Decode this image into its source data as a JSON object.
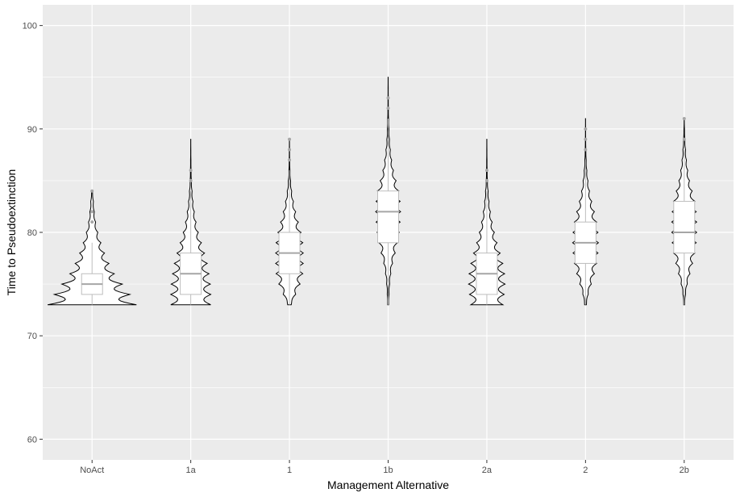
{
  "chart_data": {
    "type": "violin",
    "title": "",
    "xlabel": "Management Alternative",
    "ylabel": "Time to Pseudoextinction",
    "ylim": [
      58,
      102
    ],
    "yticks": [
      60,
      70,
      80,
      90,
      100
    ],
    "grid": true,
    "legend": "none",
    "colors": {
      "panel": "#ebebeb",
      "grid_major": "#ffffff",
      "violin_stroke": "#000000",
      "violin_fill": "#ffffff",
      "box_stroke": "#bdbdbd",
      "median": "#a6a6a6",
      "outlier": "#a6a6a6"
    },
    "categories": [
      "NoAct",
      "1a",
      "1",
      "1b",
      "2a",
      "2",
      "2b"
    ],
    "groups": [
      {
        "name": "NoAct",
        "min": 73,
        "max": 84,
        "density": [
          [
            73,
            1.0
          ],
          [
            74,
            0.85
          ],
          [
            75,
            0.68
          ],
          [
            76,
            0.5
          ],
          [
            77,
            0.38
          ],
          [
            78,
            0.28
          ],
          [
            79,
            0.2
          ],
          [
            80,
            0.13
          ],
          [
            81,
            0.08
          ],
          [
            82,
            0.05
          ],
          [
            83,
            0.03
          ],
          [
            84,
            0.01
          ]
        ],
        "box": {
          "q1": 74,
          "median": 75,
          "q3": 76,
          "whisker_low": 73,
          "whisker_high": 79
        },
        "outliers": [
          81,
          82,
          84
        ]
      },
      {
        "name": "1a",
        "min": 73,
        "max": 89,
        "density": [
          [
            73,
            0.45
          ],
          [
            74,
            0.45
          ],
          [
            75,
            0.44
          ],
          [
            76,
            0.41
          ],
          [
            77,
            0.37
          ],
          [
            78,
            0.31
          ],
          [
            79,
            0.24
          ],
          [
            80,
            0.17
          ],
          [
            81,
            0.12
          ],
          [
            82,
            0.08
          ],
          [
            83,
            0.05
          ],
          [
            84,
            0.03
          ],
          [
            85,
            0.015
          ],
          [
            86,
            0.008
          ],
          [
            87,
            0.004
          ],
          [
            88,
            0.002
          ],
          [
            89,
            0.001
          ]
        ],
        "box": {
          "q1": 74,
          "median": 76,
          "q3": 78,
          "whisker_low": 73,
          "whisker_high": 84
        },
        "outliers": [
          85,
          86
        ]
      },
      {
        "name": "1",
        "min": 73,
        "max": 89,
        "density": [
          [
            73,
            0.04
          ],
          [
            74,
            0.14
          ],
          [
            75,
            0.24
          ],
          [
            76,
            0.3
          ],
          [
            77,
            0.31
          ],
          [
            78,
            0.31
          ],
          [
            79,
            0.3
          ],
          [
            80,
            0.26
          ],
          [
            81,
            0.2
          ],
          [
            82,
            0.14
          ],
          [
            83,
            0.09
          ],
          [
            84,
            0.05
          ],
          [
            85,
            0.025
          ],
          [
            86,
            0.012
          ],
          [
            87,
            0.006
          ],
          [
            88,
            0.003
          ],
          [
            89,
            0.001
          ]
        ],
        "box": {
          "q1": 76,
          "median": 78,
          "q3": 80,
          "whisker_low": 73,
          "whisker_high": 86
        },
        "outliers": [
          87,
          88,
          89
        ]
      },
      {
        "name": "1b",
        "min": 73,
        "max": 95,
        "density": [
          [
            73,
            0.01
          ],
          [
            74,
            0.02
          ],
          [
            75,
            0.035
          ],
          [
            76,
            0.06
          ],
          [
            77,
            0.1
          ],
          [
            78,
            0.16
          ],
          [
            79,
            0.21
          ],
          [
            80,
            0.25
          ],
          [
            81,
            0.27
          ],
          [
            82,
            0.28
          ],
          [
            83,
            0.27
          ],
          [
            84,
            0.24
          ],
          [
            85,
            0.18
          ],
          [
            86,
            0.12
          ],
          [
            87,
            0.08
          ],
          [
            88,
            0.05
          ],
          [
            89,
            0.03
          ],
          [
            90,
            0.018
          ],
          [
            91,
            0.01
          ],
          [
            92,
            0.006
          ],
          [
            93,
            0.004
          ],
          [
            94,
            0.002
          ],
          [
            95,
            0.001
          ]
        ],
        "box": {
          "q1": 79,
          "median": 82,
          "q3": 84,
          "whisker_low": 73,
          "whisker_high": 91
        },
        "outliers": [
          92,
          93
        ]
      },
      {
        "name": "2a",
        "min": 73,
        "max": 89,
        "density": [
          [
            73,
            0.36
          ],
          [
            74,
            0.39
          ],
          [
            75,
            0.41
          ],
          [
            76,
            0.4
          ],
          [
            77,
            0.36
          ],
          [
            78,
            0.3
          ],
          [
            79,
            0.23
          ],
          [
            80,
            0.17
          ],
          [
            81,
            0.12
          ],
          [
            82,
            0.08
          ],
          [
            83,
            0.05
          ],
          [
            84,
            0.03
          ],
          [
            85,
            0.015
          ],
          [
            86,
            0.008
          ],
          [
            87,
            0.004
          ],
          [
            88,
            0.002
          ],
          [
            89,
            0.001
          ]
        ],
        "box": {
          "q1": 74,
          "median": 76,
          "q3": 78,
          "whisker_low": 73,
          "whisker_high": 84
        },
        "outliers": [
          85,
          86
        ]
      },
      {
        "name": "2",
        "min": 73,
        "max": 91,
        "density": [
          [
            73,
            0.02
          ],
          [
            74,
            0.06
          ],
          [
            75,
            0.13
          ],
          [
            76,
            0.2
          ],
          [
            77,
            0.25
          ],
          [
            78,
            0.28
          ],
          [
            79,
            0.29
          ],
          [
            80,
            0.28
          ],
          [
            81,
            0.25
          ],
          [
            82,
            0.2
          ],
          [
            83,
            0.14
          ],
          [
            84,
            0.09
          ],
          [
            85,
            0.055
          ],
          [
            86,
            0.03
          ],
          [
            87,
            0.016
          ],
          [
            88,
            0.008
          ],
          [
            89,
            0.004
          ],
          [
            90,
            0.002
          ],
          [
            91,
            0.001
          ]
        ],
        "box": {
          "q1": 77,
          "median": 79,
          "q3": 81,
          "whisker_low": 73,
          "whisker_high": 87
        },
        "outliers": [
          88,
          89,
          90
        ]
      },
      {
        "name": "2b",
        "min": 73,
        "max": 91,
        "density": [
          [
            73,
            0.01
          ],
          [
            74,
            0.03
          ],
          [
            75,
            0.07
          ],
          [
            76,
            0.13
          ],
          [
            77,
            0.19
          ],
          [
            78,
            0.24
          ],
          [
            79,
            0.27
          ],
          [
            80,
            0.28
          ],
          [
            81,
            0.28
          ],
          [
            82,
            0.27
          ],
          [
            83,
            0.24
          ],
          [
            84,
            0.18
          ],
          [
            85,
            0.12
          ],
          [
            86,
            0.08
          ],
          [
            87,
            0.05
          ],
          [
            88,
            0.03
          ],
          [
            89,
            0.015
          ],
          [
            90,
            0.006
          ],
          [
            91,
            0.001
          ]
        ],
        "box": {
          "q1": 78,
          "median": 80,
          "q3": 83,
          "whisker_low": 73,
          "whisker_high": 88
        },
        "outliers": [
          89,
          91
        ]
      }
    ]
  }
}
